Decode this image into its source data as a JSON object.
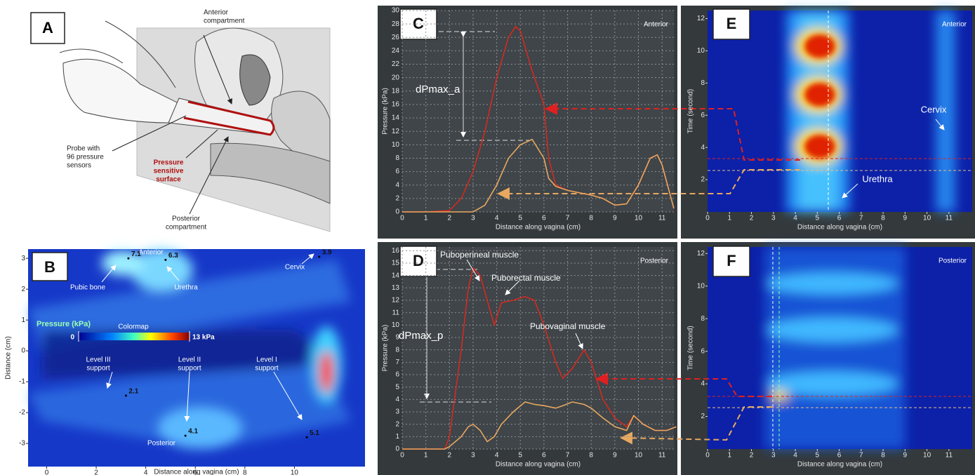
{
  "diagram": {
    "panel": "A",
    "labels": [
      [
        "Anterior",
        "compartment"
      ],
      [
        "Probe with",
        "96 pressure",
        "sensors"
      ],
      [
        "Pressure",
        "sensitive",
        "surface"
      ],
      [
        "Posterior",
        "compartment"
      ]
    ]
  },
  "chart_data": [
    {
      "type": "heatmap",
      "panel": "B",
      "xlabel": "Distance along vagina (cm)",
      "ylabel": "Distance (cm)",
      "xlim": [
        -0.75,
        12.85
      ],
      "ylim": [
        -3.75,
        3.3
      ],
      "xticks": [
        0,
        2,
        4,
        6,
        8,
        10
      ],
      "yticks": [
        -3,
        -2,
        -1,
        0,
        1,
        2,
        3
      ],
      "colorbar": {
        "title": "Pressure (kPa)",
        "name": "Colormap",
        "min": 0,
        "max": {
          "value": 13,
          "label": "13 kPa"
        }
      },
      "labels": [
        "Anterior",
        "Posterior",
        "Pubic bone",
        "Urethra",
        "Cervix",
        [
          "Level III",
          "support"
        ],
        [
          "Level II",
          "support"
        ],
        [
          "Level I",
          "support"
        ]
      ],
      "points": {
        "x": [
          3.3,
          4.8,
          11.0,
          3.2,
          5.6,
          10.5
        ],
        "y": [
          3.0,
          2.95,
          3.05,
          -1.45,
          -2.75,
          -2.8
        ],
        "values": [
          7.1,
          6.3,
          3.9,
          2.1,
          4.1,
          5.1
        ]
      }
    },
    {
      "type": "line",
      "panel": "C",
      "label": "Anterior",
      "xlabel": "Distance along vagina (cm)",
      "ylabel": "Pressure (kPa)",
      "xlim": [
        0,
        11.5
      ],
      "ylim": [
        0,
        30
      ],
      "xticks": [
        0,
        1,
        2,
        3,
        4,
        5,
        6,
        7,
        8,
        9,
        10,
        11
      ],
      "yticks": [
        0,
        2,
        4,
        6,
        8,
        10,
        12,
        14,
        16,
        18,
        20,
        22,
        24,
        26,
        28,
        30
      ],
      "grid": true,
      "x": [
        0,
        1,
        2,
        2.5,
        3,
        3.5,
        4,
        4.5,
        4.8,
        5,
        5.5,
        6,
        6.2,
        6.5,
        7,
        8,
        8.5,
        9,
        9.5,
        10,
        10.5,
        10.8,
        11,
        11.5
      ],
      "series": [
        {
          "color": "#d42a20",
          "values": [
            0,
            0,
            0.2,
            2,
            6,
            12,
            20,
            26,
            27.6,
            27,
            21,
            16,
            8,
            4,
            3.2,
            2.5,
            2,
            1,
            1.2,
            4,
            8,
            8.5,
            7,
            0.5
          ]
        },
        {
          "color": "#e8a860",
          "values": [
            0,
            0,
            0,
            0,
            0,
            1,
            4,
            8,
            9.2,
            10,
            10.8,
            8,
            5,
            3.8,
            3.2,
            2.5,
            2,
            1,
            1.2,
            4,
            8,
            8.5,
            7,
            0.5
          ]
        }
      ],
      "annotations": [
        "dPmax_a"
      ]
    },
    {
      "type": "heatmap",
      "panel": "E",
      "label": "Anterior",
      "xlabel": "Distance along vagina (cm)",
      "ylabel": "Time (second)",
      "xlim": [
        0,
        12.06
      ],
      "ylim": [
        0,
        12.5
      ],
      "xticks": [
        0,
        1,
        2,
        3,
        4,
        5,
        6,
        7,
        8,
        9,
        10,
        11
      ],
      "yticks": [
        2,
        4,
        6,
        8,
        10,
        12
      ],
      "annotations": [
        "Cervix",
        "Urethra"
      ]
    },
    {
      "type": "line",
      "panel": "D",
      "label": "Posterior",
      "xlabel": "Distance along vagina (cm)",
      "ylabel": "Pressure (kPa)",
      "xlim": [
        0,
        11.5
      ],
      "ylim": [
        0,
        16.3
      ],
      "xticks": [
        0,
        1,
        2,
        3,
        4,
        5,
        6,
        7,
        8,
        9,
        10,
        11
      ],
      "yticks": [
        0,
        1,
        2,
        3,
        4,
        5,
        6,
        7,
        8,
        9,
        10,
        11,
        12,
        13,
        14,
        15,
        16
      ],
      "grid": true,
      "x": [
        0,
        1.8,
        2,
        2.5,
        2.8,
        3,
        3.3,
        3.6,
        3.9,
        4.2,
        4.7,
        5.2,
        5.6,
        6,
        6.5,
        6.8,
        7.2,
        7.7,
        8,
        8.5,
        9,
        9.5,
        9.8,
        10.2,
        10.7,
        11.2,
        11.6
      ],
      "series": [
        {
          "color": "#d42a20",
          "values": [
            0,
            0,
            1,
            8,
            13,
            14.6,
            14,
            12,
            10,
            11.8,
            12,
            12.3,
            12,
            10,
            7,
            5.7,
            6.5,
            8,
            7,
            4,
            2.5,
            1.8,
            2.7,
            2,
            1.5,
            1.5,
            1.8
          ]
        },
        {
          "color": "#e8a860",
          "values": [
            0,
            0,
            0.2,
            1,
            1.8,
            2,
            1.5,
            0.6,
            1,
            2,
            3,
            3.8,
            3.6,
            3.5,
            3.3,
            3.5,
            3.8,
            3.6,
            3.3,
            2.5,
            1.8,
            1.5,
            2.7,
            2,
            1.5,
            1.5,
            1.8
          ]
        }
      ],
      "annotations": [
        "Puboperineal muscle",
        "Puborectal muscle",
        "Pubovaginal muscle",
        "dPmax_p"
      ]
    },
    {
      "type": "heatmap",
      "panel": "F",
      "label": "Posterior",
      "xlabel": "Distance along vagina (cm)",
      "ylabel": "Time (second)",
      "xlim": [
        0,
        12.06
      ],
      "ylim": [
        0,
        12.4
      ],
      "xticks": [
        0,
        1,
        2,
        3,
        4,
        5,
        6,
        7,
        8,
        9,
        10,
        11
      ],
      "yticks": [
        2,
        4,
        6,
        8,
        10,
        12
      ]
    }
  ]
}
